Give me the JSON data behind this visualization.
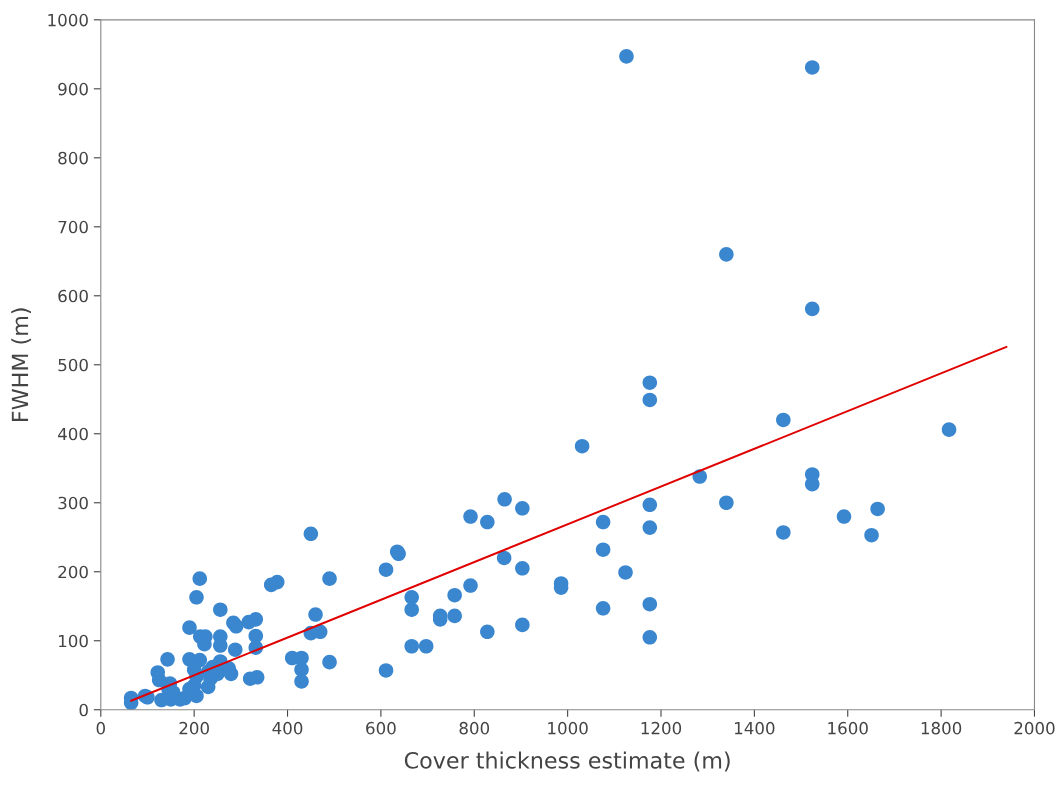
{
  "chart_data": {
    "type": "scatter",
    "xlabel": "Cover thickness estimate (m)",
    "ylabel": "FWHM (m)",
    "xlim": [
      0,
      2000
    ],
    "ylim": [
      0,
      1000
    ],
    "xticks": [
      0,
      200,
      400,
      600,
      800,
      1000,
      1200,
      1400,
      1600,
      1800,
      2000
    ],
    "yticks": [
      0,
      100,
      200,
      300,
      400,
      500,
      600,
      700,
      800,
      900,
      1000
    ],
    "grid": false,
    "legend": false,
    "marker": "circle",
    "series": [
      {
        "color": "#3a87d0",
        "x": [
          1126,
          1524,
          1340,
          1524,
          1176,
          1176,
          1462,
          1817,
          1031,
          1283,
          1524,
          1524,
          1340,
          1176,
          1664,
          865,
          903,
          792,
          1592,
          1176,
          1462,
          1651,
          828,
          1076,
          1076,
          864,
          903,
          635,
          638,
          611,
          450,
          986,
          986,
          792,
          1124,
          758,
          666,
          666,
          727,
          727,
          758,
          1076,
          1176,
          1176,
          903,
          828,
          666,
          697,
          611,
          490,
          460,
          450,
          470,
          490,
          430,
          410,
          430,
          430,
          378,
          365,
          212,
          205,
          256,
          190,
          143,
          190,
          213,
          224,
          222,
          256,
          256,
          284,
          290,
          317,
          332,
          332,
          332,
          288,
          320,
          335,
          274,
          279,
          256,
          240,
          230,
          205,
          200,
          205,
          230,
          180,
          150,
          130,
          125,
          122,
          145,
          148,
          155,
          65,
          65,
          95,
          100,
          212,
          200,
          235,
          250,
          190,
          170
        ],
        "values": [
          947,
          931,
          660,
          581,
          474,
          449,
          420,
          406,
          382,
          338,
          341,
          327,
          300,
          297,
          291,
          305,
          292,
          280,
          280,
          264,
          257,
          253,
          272,
          272,
          232,
          220,
          205,
          229,
          226,
          203,
          255,
          183,
          177,
          180,
          199,
          166,
          163,
          145,
          136,
          131,
          136,
          147,
          153,
          105,
          123,
          113,
          92,
          92,
          57,
          190,
          138,
          111,
          113,
          69,
          75,
          75,
          58,
          41,
          185,
          181,
          190,
          163,
          145,
          119,
          73,
          73,
          106,
          106,
          95,
          106,
          93,
          126,
          121,
          127,
          131,
          107,
          90,
          87,
          45,
          47,
          60,
          52,
          70,
          62,
          55,
          48,
          35,
          20,
          33,
          17,
          15,
          14,
          43,
          54,
          30,
          38,
          25,
          17,
          10,
          20,
          18,
          72,
          58,
          45,
          52,
          30,
          15
        ]
      },
      {
        "type": "line",
        "color": "#e00000",
        "marker": "none",
        "line_style": "solid",
        "x": [
          65,
          1940
        ],
        "values": [
          13,
          526
        ]
      }
    ]
  }
}
